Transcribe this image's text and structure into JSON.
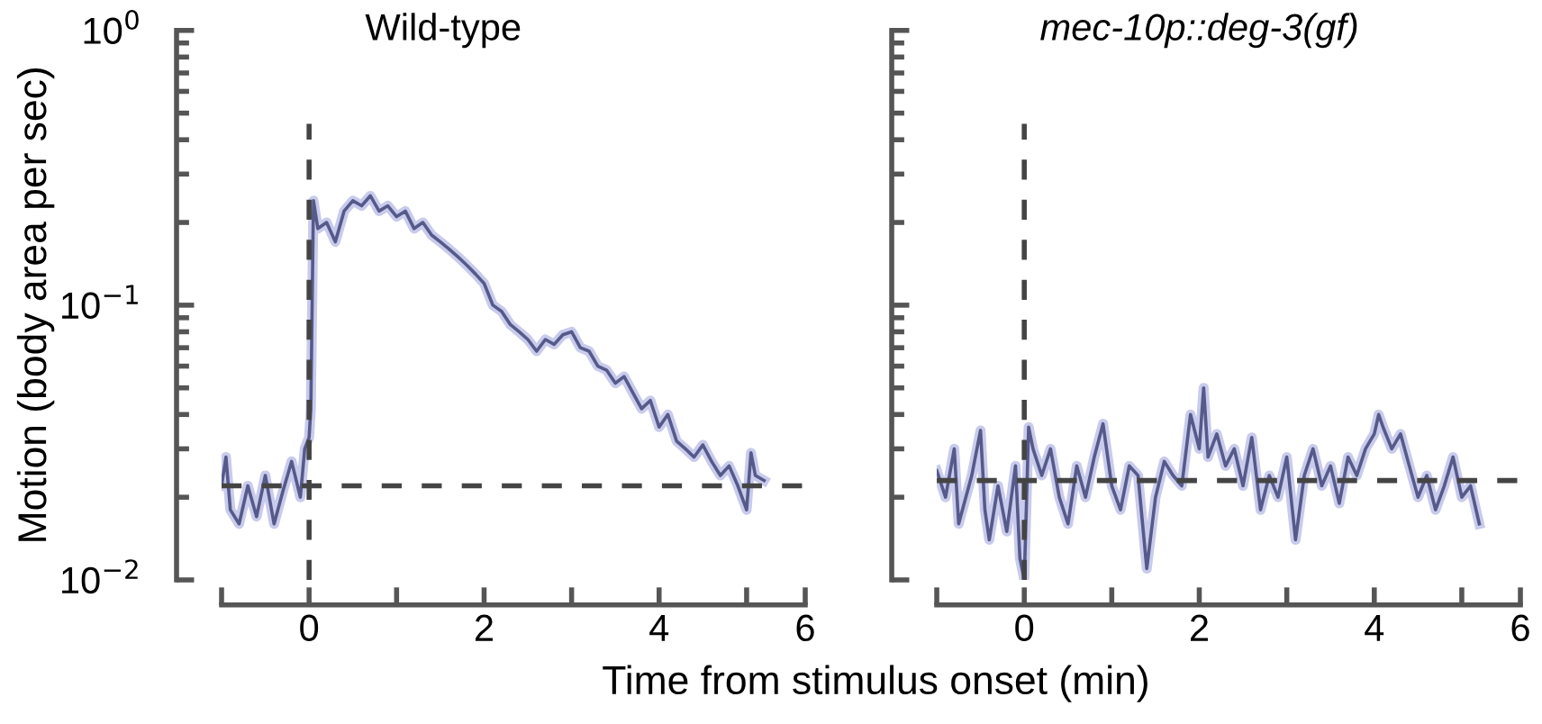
{
  "chart_data": [
    {
      "type": "line",
      "title": "Wild-type",
      "ylabel": "Motion (body area per sec)",
      "xlabel": "Time from stimulus onset (min)",
      "log": "y",
      "grid": false,
      "xlim": [
        -1,
        5.67
      ],
      "xticks": [
        {
          "value": -1,
          "label": null
        },
        0,
        {
          "value": 1,
          "label": null
        },
        2,
        {
          "value": 3,
          "label": null
        },
        4,
        {
          "value": 5,
          "label": null
        },
        {
          "value": 5.67,
          "label": "6"
        }
      ],
      "ylim": [
        0.01,
        1
      ],
      "yticks": [
        {
          "value": 0.01,
          "label": "10$^{−2}$"
        },
        {
          "value": 0.1,
          "label": "10$^{−1}$"
        },
        {
          "value": 1,
          "label": "10$^{0}$"
        }
      ],
      "ref_lines": [
        {
          "axis": "x",
          "value": 0,
          "color": "#444444",
          "line_style": "dashed"
        },
        {
          "axis": "y",
          "value": 0.022,
          "color": "#444444",
          "line_style": "dashed"
        }
      ],
      "series": [
        {
          "color": "#555a8a",
          "x": [
            -1.0,
            -0.95,
            -0.9,
            -0.8,
            -0.7,
            -0.6,
            -0.5,
            -0.4,
            -0.3,
            -0.2,
            -0.1,
            -0.05,
            0.0,
            0.02,
            0.05,
            0.1,
            0.2,
            0.3,
            0.4,
            0.5,
            0.6,
            0.7,
            0.8,
            0.9,
            1.0,
            1.1,
            1.2,
            1.3,
            1.4,
            1.5,
            1.6,
            1.7,
            1.8,
            1.9,
            2.0,
            2.1,
            2.2,
            2.3,
            2.4,
            2.5,
            2.6,
            2.7,
            2.8,
            2.9,
            3.0,
            3.1,
            3.2,
            3.3,
            3.4,
            3.5,
            3.6,
            3.7,
            3.8,
            3.9,
            4.0,
            4.1,
            4.2,
            4.3,
            4.4,
            4.5,
            4.6,
            4.7,
            4.8,
            4.9,
            5.0,
            5.05,
            5.1,
            5.2
          ],
          "values": [
            0.022,
            0.028,
            0.018,
            0.016,
            0.022,
            0.017,
            0.024,
            0.016,
            0.021,
            0.027,
            0.02,
            0.03,
            0.033,
            0.042,
            0.24,
            0.19,
            0.2,
            0.17,
            0.22,
            0.24,
            0.23,
            0.25,
            0.22,
            0.23,
            0.21,
            0.22,
            0.19,
            0.2,
            0.18,
            0.17,
            0.16,
            0.15,
            0.14,
            0.13,
            0.12,
            0.1,
            0.095,
            0.085,
            0.08,
            0.075,
            0.068,
            0.075,
            0.072,
            0.078,
            0.08,
            0.07,
            0.068,
            0.06,
            0.058,
            0.052,
            0.055,
            0.048,
            0.042,
            0.045,
            0.036,
            0.04,
            0.032,
            0.03,
            0.028,
            0.031,
            0.027,
            0.024,
            0.026,
            0.022,
            0.018,
            0.029,
            0.024,
            0.023
          ]
        }
      ]
    },
    {
      "type": "line",
      "title": "mec-10p::deg-3(gf)",
      "log": "y",
      "grid": false,
      "tick_labels": "x",
      "xlim": [
        -1,
        5.67
      ],
      "xticks": [
        {
          "value": -1,
          "label": null
        },
        0,
        {
          "value": 1,
          "label": null
        },
        2,
        {
          "value": 3,
          "label": null
        },
        4,
        {
          "value": 5,
          "label": null
        },
        {
          "value": 5.67,
          "label": "6"
        }
      ],
      "ylim": [
        0.01,
        1
      ],
      "yticks": [
        {
          "value": 0.01,
          "label": null
        },
        {
          "value": 0.1,
          "label": null
        },
        {
          "value": 1,
          "label": null
        }
      ],
      "ref_lines": [
        {
          "axis": "x",
          "value": 0,
          "color": "#444444",
          "line_style": "dashed"
        },
        {
          "axis": "y",
          "value": 0.023,
          "color": "#444444",
          "line_style": "dashed"
        }
      ],
      "series": [
        {
          "color": "#555a8a",
          "x": [
            -1.0,
            -0.9,
            -0.8,
            -0.75,
            -0.6,
            -0.5,
            -0.45,
            -0.4,
            -0.3,
            -0.2,
            -0.1,
            -0.05,
            0.0,
            0.05,
            0.1,
            0.2,
            0.3,
            0.4,
            0.5,
            0.6,
            0.7,
            0.8,
            0.9,
            1.0,
            1.1,
            1.2,
            1.3,
            1.4,
            1.5,
            1.6,
            1.7,
            1.8,
            1.9,
            2.0,
            2.05,
            2.1,
            2.2,
            2.3,
            2.4,
            2.5,
            2.6,
            2.7,
            2.8,
            2.9,
            3.0,
            3.1,
            3.2,
            3.3,
            3.4,
            3.5,
            3.6,
            3.7,
            3.8,
            3.9,
            4.0,
            4.05,
            4.1,
            4.2,
            4.3,
            4.4,
            4.5,
            4.6,
            4.7,
            4.8,
            4.9,
            5.0,
            5.1,
            5.2
          ],
          "values": [
            0.025,
            0.02,
            0.03,
            0.016,
            0.024,
            0.035,
            0.018,
            0.014,
            0.022,
            0.015,
            0.026,
            0.012,
            0.01,
            0.036,
            0.03,
            0.024,
            0.03,
            0.02,
            0.016,
            0.026,
            0.02,
            0.028,
            0.037,
            0.022,
            0.018,
            0.026,
            0.024,
            0.011,
            0.02,
            0.027,
            0.024,
            0.022,
            0.04,
            0.03,
            0.05,
            0.028,
            0.034,
            0.026,
            0.03,
            0.022,
            0.033,
            0.018,
            0.024,
            0.02,
            0.028,
            0.014,
            0.024,
            0.03,
            0.022,
            0.026,
            0.019,
            0.028,
            0.024,
            0.03,
            0.034,
            0.04,
            0.036,
            0.03,
            0.034,
            0.026,
            0.02,
            0.024,
            0.018,
            0.022,
            0.028,
            0.02,
            0.022,
            0.016
          ]
        }
      ]
    }
  ]
}
